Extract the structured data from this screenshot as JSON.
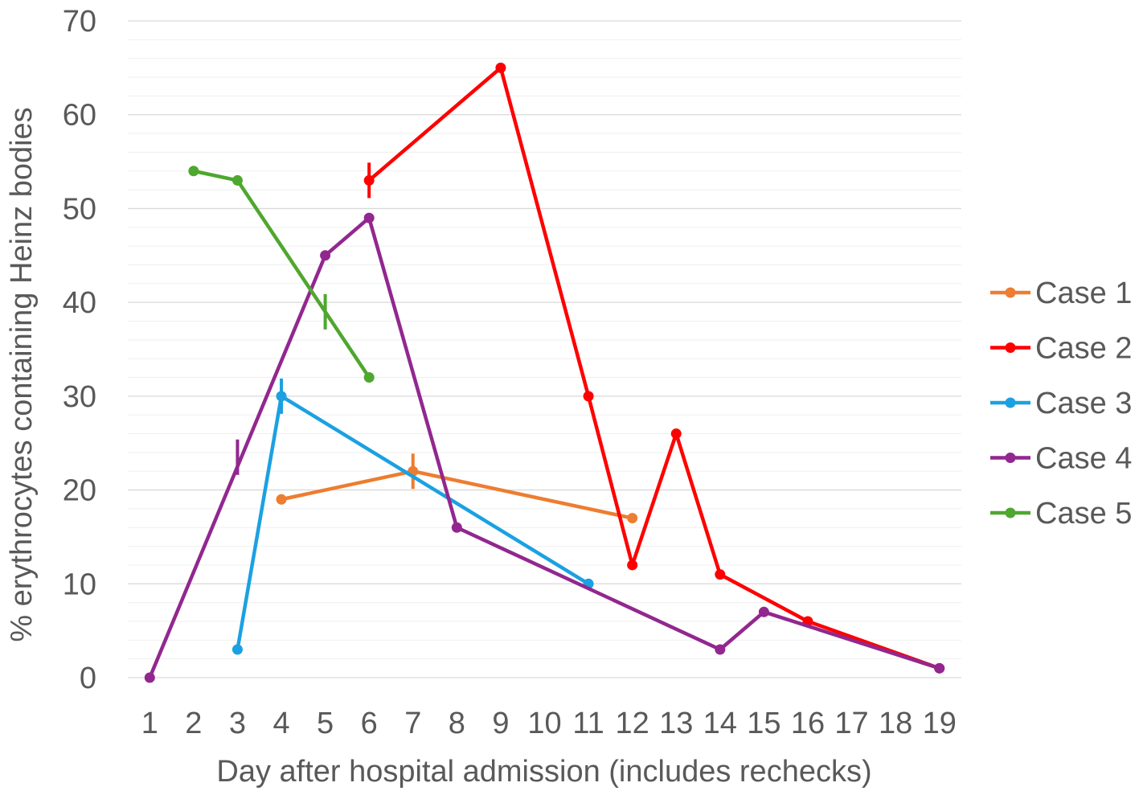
{
  "chart_data": {
    "type": "line",
    "title": "",
    "xlabel": "Day after hospital admission (includes rechecks)",
    "ylabel": "% erythrocytes containing Heinz bodies",
    "categories": [
      "1",
      "2",
      "3",
      "4",
      "5",
      "6",
      "7",
      "8",
      "9",
      "10",
      "11",
      "12",
      "13",
      "14",
      "15",
      "16",
      "17",
      "18",
      "19"
    ],
    "ylim": [
      0,
      70
    ],
    "yticks": [
      0,
      10,
      20,
      30,
      40,
      50,
      60,
      70
    ],
    "grid": true,
    "legend": "right",
    "series": [
      {
        "name": "Case 1",
        "color": "#ED7D31",
        "points": [
          [
            4,
            19
          ],
          [
            7,
            22
          ],
          [
            12,
            17
          ]
        ],
        "markers": [
          [
            7,
            22
          ]
        ]
      },
      {
        "name": "Case 2",
        "color": "#FF0000",
        "points": [
          [
            6,
            53
          ],
          [
            9,
            65
          ],
          [
            11,
            30
          ],
          [
            12,
            12
          ],
          [
            13,
            26
          ],
          [
            14,
            11
          ],
          [
            16,
            6
          ],
          [
            19,
            1
          ]
        ],
        "markers": [
          [
            6,
            53
          ]
        ]
      },
      {
        "name": "Case 3",
        "color": "#1BA1E2",
        "points": [
          [
            3,
            3
          ],
          [
            4,
            30
          ],
          [
            11,
            10
          ]
        ],
        "markers": [
          [
            4,
            30
          ]
        ]
      },
      {
        "name": "Case 4",
        "color": "#92278F",
        "points": [
          [
            1,
            0
          ],
          [
            5,
            45
          ],
          [
            6,
            49
          ],
          [
            8,
            16
          ],
          [
            14,
            3
          ],
          [
            15,
            7
          ],
          [
            19,
            1
          ]
        ],
        "markers": [
          [
            3,
            23.5
          ]
        ]
      },
      {
        "name": "Case 5",
        "color": "#4EA72E",
        "points": [
          [
            2,
            54
          ],
          [
            3,
            53
          ],
          [
            6,
            32
          ]
        ],
        "markers": [
          [
            5,
            39
          ]
        ]
      }
    ]
  }
}
